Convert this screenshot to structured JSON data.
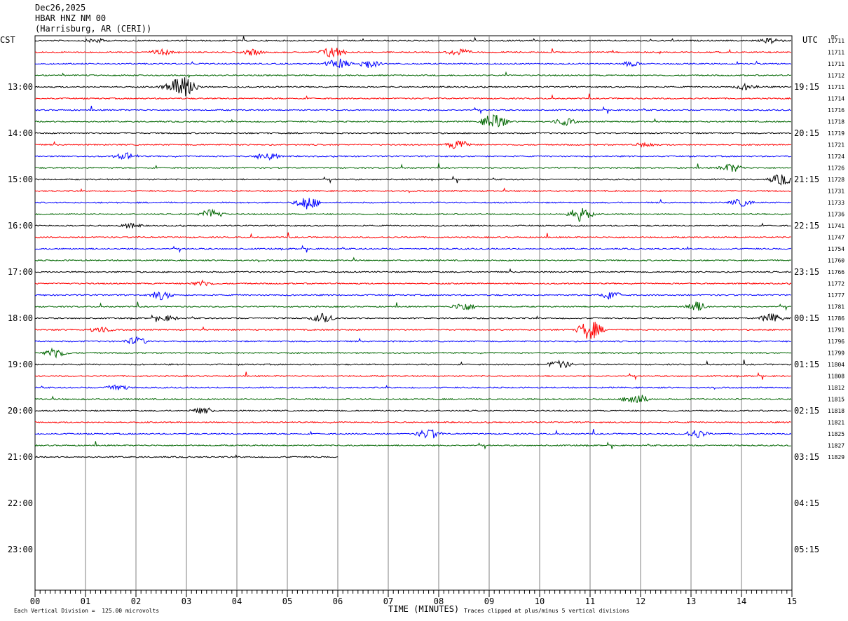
{
  "header": {
    "date": "Dec26,2025",
    "station": "HBAR HNZ NM 00",
    "location": "(Harrisburg, AR (CERI))"
  },
  "left_zone": "CST",
  "right_zone": "UTC",
  "dc_label": "DC",
  "footer": {
    "division_note": "Each Vertical Division =  125.00 microvolts",
    "xlabel": "TIME (MINUTES)",
    "clip_note": "Traces clipped at plus/minus 5 vertical divisions"
  },
  "colors": {
    "trace_cycle": [
      "#000000",
      "#ff0000",
      "#0000ff",
      "#006600"
    ],
    "gridline": "#808080",
    "frame": "#000000"
  },
  "chart_data": {
    "type": "line",
    "title": "HBAR HNZ NM 00",
    "xlabel": "TIME (MINUTES)",
    "xlim": [
      0,
      15
    ],
    "x_ticks": [
      "00",
      "01",
      "02",
      "03",
      "04",
      "05",
      "06",
      "07",
      "08",
      "09",
      "10",
      "11",
      "12",
      "13",
      "14",
      "15"
    ],
    "rows_per_hour": 4,
    "minutes_per_row": 15,
    "total_hour_slots": 12,
    "first_row_time_cst": "12:00",
    "hour_labels_cst": [
      "13:00",
      "14:00",
      "15:00",
      "16:00",
      "17:00",
      "18:00",
      "19:00",
      "20:00",
      "21:00",
      "22:00",
      "23:00"
    ],
    "hour_labels_utc": [
      "19:15",
      "20:15",
      "21:15",
      "22:15",
      "23:15",
      "00:15",
      "01:15",
      "02:15",
      "03:15",
      "04:15",
      "05:15"
    ],
    "dc_offsets": [
      11711,
      11711,
      11711,
      11712,
      11711,
      11714,
      11716,
      11718,
      11719,
      11721,
      11724,
      11726,
      11728,
      11731,
      11733,
      11736,
      11741,
      11747,
      11754,
      11760,
      11766,
      11772,
      11777,
      11781,
      11786,
      11791,
      11796,
      11799,
      11804,
      11808,
      11812,
      11815,
      11818,
      11821,
      11825,
      11827,
      11829
    ],
    "last_row_end_minute": 6,
    "events": [
      {
        "row": 0,
        "minute": 1.2,
        "amp": 4
      },
      {
        "row": 0,
        "minute": 14.6,
        "amp": 5
      },
      {
        "row": 1,
        "minute": 2.5,
        "amp": 5
      },
      {
        "row": 1,
        "minute": 4.3,
        "amp": 5
      },
      {
        "row": 1,
        "minute": 5.9,
        "amp": 10
      },
      {
        "row": 1,
        "minute": 8.4,
        "amp": 6
      },
      {
        "row": 2,
        "minute": 6.0,
        "amp": 9
      },
      {
        "row": 2,
        "minute": 6.6,
        "amp": 7
      },
      {
        "row": 2,
        "minute": 11.8,
        "amp": 4
      },
      {
        "row": 4,
        "minute": 2.7,
        "amp": 6
      },
      {
        "row": 4,
        "minute": 2.95,
        "amp": 22
      },
      {
        "row": 4,
        "minute": 14.1,
        "amp": 5
      },
      {
        "row": 7,
        "minute": 9.1,
        "amp": 14
      },
      {
        "row": 7,
        "minute": 10.5,
        "amp": 6
      },
      {
        "row": 9,
        "minute": 8.4,
        "amp": 8
      },
      {
        "row": 9,
        "minute": 12.1,
        "amp": 4
      },
      {
        "row": 10,
        "minute": 1.8,
        "amp": 6
      },
      {
        "row": 10,
        "minute": 4.6,
        "amp": 7
      },
      {
        "row": 11,
        "minute": 13.8,
        "amp": 7
      },
      {
        "row": 12,
        "minute": 14.8,
        "amp": 9
      },
      {
        "row": 14,
        "minute": 5.4,
        "amp": 11
      },
      {
        "row": 14,
        "minute": 14.0,
        "amp": 6
      },
      {
        "row": 15,
        "minute": 3.5,
        "amp": 8
      },
      {
        "row": 15,
        "minute": 10.8,
        "amp": 11
      },
      {
        "row": 16,
        "minute": 1.9,
        "amp": 4
      },
      {
        "row": 21,
        "minute": 3.3,
        "amp": 5
      },
      {
        "row": 22,
        "minute": 2.5,
        "amp": 7
      },
      {
        "row": 22,
        "minute": 11.4,
        "amp": 7
      },
      {
        "row": 23,
        "minute": 8.5,
        "amp": 7
      },
      {
        "row": 23,
        "minute": 13.1,
        "amp": 8
      },
      {
        "row": 24,
        "minute": 2.6,
        "amp": 5
      },
      {
        "row": 24,
        "minute": 5.7,
        "amp": 7
      },
      {
        "row": 24,
        "minute": 14.6,
        "amp": 7
      },
      {
        "row": 25,
        "minute": 1.3,
        "amp": 5
      },
      {
        "row": 25,
        "minute": 11.0,
        "amp": 16
      },
      {
        "row": 26,
        "minute": 2.0,
        "amp": 7
      },
      {
        "row": 27,
        "minute": 0.4,
        "amp": 8
      },
      {
        "row": 28,
        "minute": 10.4,
        "amp": 7
      },
      {
        "row": 30,
        "minute": 1.6,
        "amp": 6
      },
      {
        "row": 31,
        "minute": 11.9,
        "amp": 10
      },
      {
        "row": 32,
        "minute": 3.3,
        "amp": 5
      },
      {
        "row": 34,
        "minute": 7.8,
        "amp": 8
      },
      {
        "row": 34,
        "minute": 13.1,
        "amp": 7
      }
    ]
  }
}
